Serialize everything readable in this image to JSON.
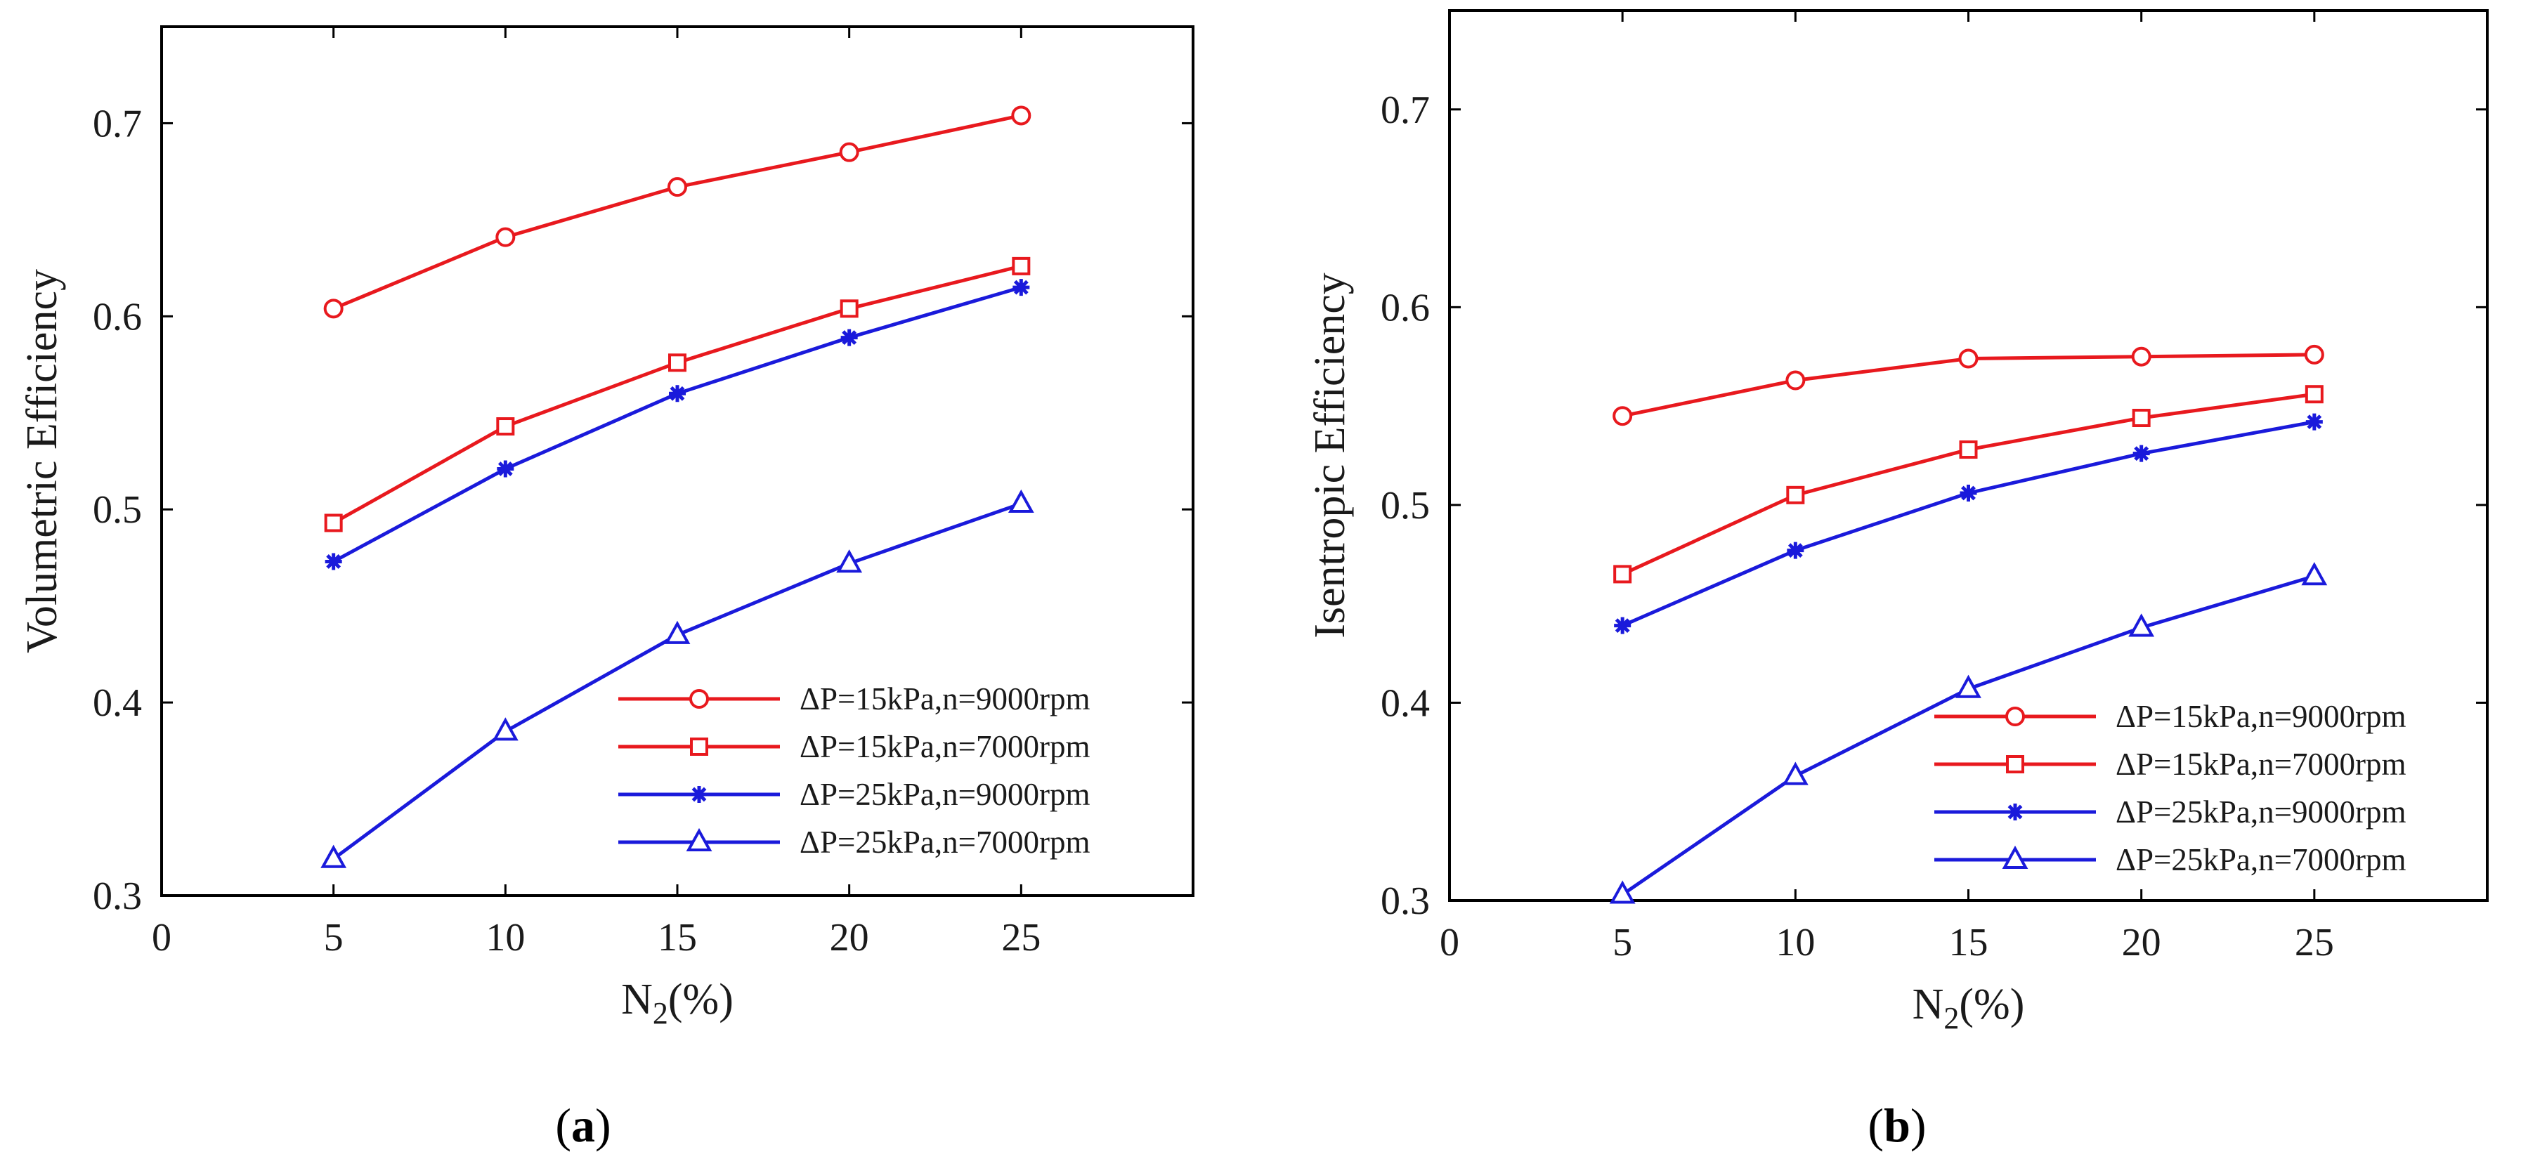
{
  "chart_data": [
    {
      "panel": "a",
      "panel_label_open": "(",
      "panel_label_letter": "a",
      "panel_label_close": ")",
      "type": "line",
      "title": "",
      "xlabel_main": "N",
      "xlabel_sub": "2",
      "xlabel_suffix": "(%)",
      "ylabel": "Volumetric Efficiency",
      "xlim": [
        0,
        30
      ],
      "ylim": [
        0.3,
        0.75
      ],
      "xticks": [
        0,
        5,
        10,
        15,
        20,
        25
      ],
      "xtick_labels": [
        "0",
        "5",
        "10",
        "15",
        "20",
        "25"
      ],
      "yticks": [
        0.3,
        0.4,
        0.5,
        0.6,
        0.7
      ],
      "ytick_labels": [
        "0.3",
        "0.4",
        "0.5",
        "0.6",
        "0.7"
      ],
      "legend_position": "bottom-right",
      "x": [
        5,
        10,
        15,
        20,
        25
      ],
      "series": [
        {
          "name": "ΔP=15kPa,n=9000rpm",
          "color": "#e8191e",
          "marker": "circle",
          "values": [
            0.604,
            0.641,
            0.667,
            0.685,
            0.704
          ]
        },
        {
          "name": "ΔP=15kPa,n=7000rpm",
          "color": "#e8191e",
          "marker": "square",
          "values": [
            0.493,
            0.543,
            0.576,
            0.604,
            0.626
          ]
        },
        {
          "name": "ΔP=25kPa,n=9000rpm",
          "color": "#1a1adb",
          "marker": "star",
          "values": [
            0.473,
            0.521,
            0.56,
            0.589,
            0.615
          ]
        },
        {
          "name": "ΔP=25kPa,n=7000rpm",
          "color": "#1a1adb",
          "marker": "triangle",
          "values": [
            0.319,
            0.385,
            0.435,
            0.472,
            0.503
          ]
        }
      ]
    },
    {
      "panel": "b",
      "panel_label_open": "(",
      "panel_label_letter": "b",
      "panel_label_close": ")",
      "type": "line",
      "title": "",
      "xlabel_main": "N",
      "xlabel_sub": "2",
      "xlabel_suffix": "(%)",
      "ylabel": "Isentropic Efficiency",
      "xlim": [
        0,
        30
      ],
      "ylim": [
        0.3,
        0.75
      ],
      "xticks": [
        0,
        5,
        10,
        15,
        20,
        25
      ],
      "xtick_labels": [
        "0",
        "5",
        "10",
        "15",
        "20",
        "25"
      ],
      "yticks": [
        0.3,
        0.4,
        0.5,
        0.6,
        0.7
      ],
      "ytick_labels": [
        "0.3",
        "0.4",
        "0.5",
        "0.6",
        "0.7"
      ],
      "legend_position": "bottom-right",
      "x": [
        5,
        10,
        15,
        20,
        25
      ],
      "series": [
        {
          "name": "ΔP=15kPa,n=9000rpm",
          "color": "#e8191e",
          "marker": "circle",
          "values": [
            0.545,
            0.563,
            0.574,
            0.575,
            0.576
          ]
        },
        {
          "name": "ΔP=15kPa,n=7000rpm",
          "color": "#e8191e",
          "marker": "square",
          "values": [
            0.465,
            0.505,
            0.528,
            0.544,
            0.556
          ]
        },
        {
          "name": "ΔP=25kPa,n=9000rpm",
          "color": "#1a1adb",
          "marker": "star",
          "values": [
            0.439,
            0.477,
            0.506,
            0.526,
            0.542
          ]
        },
        {
          "name": "ΔP=25kPa,n=7000rpm",
          "color": "#1a1adb",
          "marker": "triangle",
          "values": [
            0.303,
            0.363,
            0.407,
            0.438,
            0.464
          ]
        }
      ]
    }
  ]
}
